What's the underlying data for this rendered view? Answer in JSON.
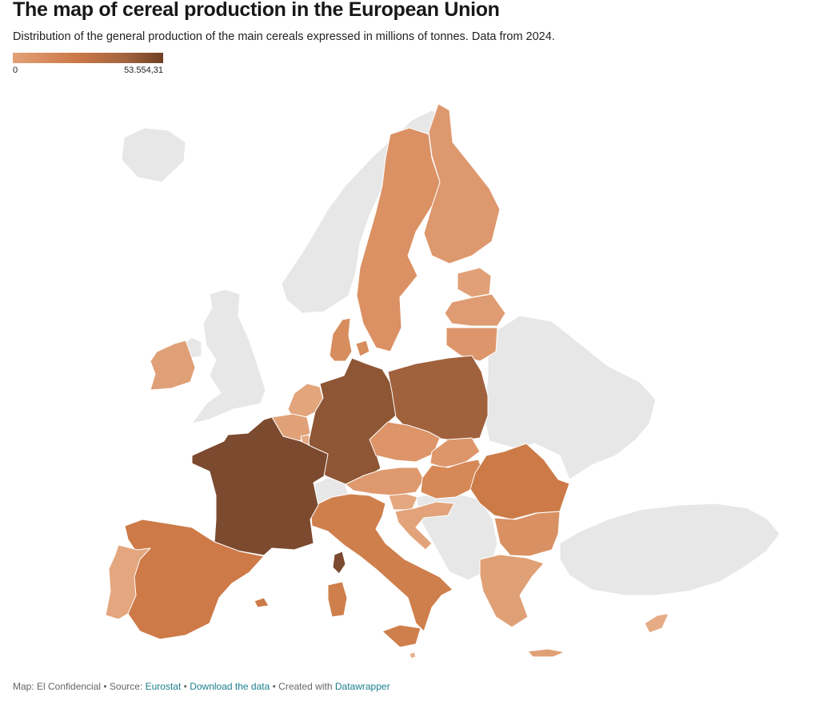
{
  "header": {
    "title": "The map of cereal production in the European Union",
    "subtitle": "Distribution of the general production of the main cereals expressed in millions of tonnes. Data from 2024."
  },
  "legend": {
    "min_label": "0",
    "max_label": "53.554,31",
    "colors": [
      "#e3a177",
      "#cd7a49",
      "#a4643f",
      "#6f4023"
    ]
  },
  "map_data": {
    "region": "European Union",
    "member_colors": {
      "france": "#7c4a2f",
      "germany": "#8e5634",
      "poland": "#a0613d",
      "romania": "#cc7b48",
      "spain": "#cd7a48",
      "italy": "#cf7f4c",
      "hungary": "#d68857",
      "bulgaria": "#d99063",
      "czechia": "#dc9468",
      "austria": "#de996e",
      "slovakia": "#dd966a",
      "sweden": "#db9163",
      "finland": "#de986e",
      "denmark": "#d88d5e",
      "lithuania": "#dd966b",
      "latvia": "#df9b71",
      "estonia": "#e1a077",
      "greece": "#e0a076",
      "portugal": "#e4a67f",
      "ireland": "#e0a077",
      "netherlands": "#e3a57c",
      "belgium": "#e1a178",
      "luxembourg": "#e5a983",
      "croatia": "#e2a37b",
      "slovenia": "#e4a780",
      "cyprus": "#e6ac86",
      "malta": "#e7ae89"
    },
    "nonmember_color": "#e7e7e7"
  },
  "footer": {
    "credit": "Map: El Confidencial",
    "sep1": " • Source: ",
    "source": "Eurostat",
    "sep2": " • ",
    "download": "Download the data",
    "sep3": " • Created with ",
    "tool": "Datawrapper"
  }
}
